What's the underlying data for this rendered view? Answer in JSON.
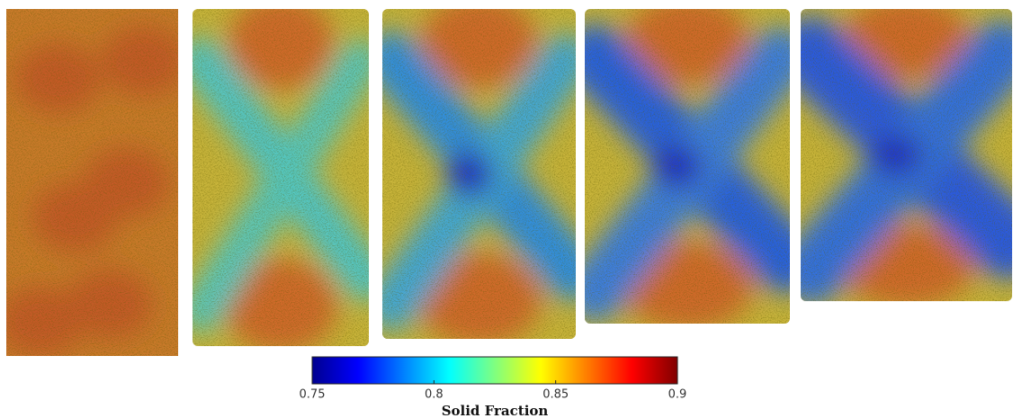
{
  "chart_data": {
    "type": "heatmap",
    "colormap": "jet",
    "colorbar": {
      "label": "Solid Fraction",
      "clim": [
        0.75,
        0.9
      ],
      "cticks": [
        0.75,
        0.8,
        0.85,
        0.9
      ]
    }
  }
}
